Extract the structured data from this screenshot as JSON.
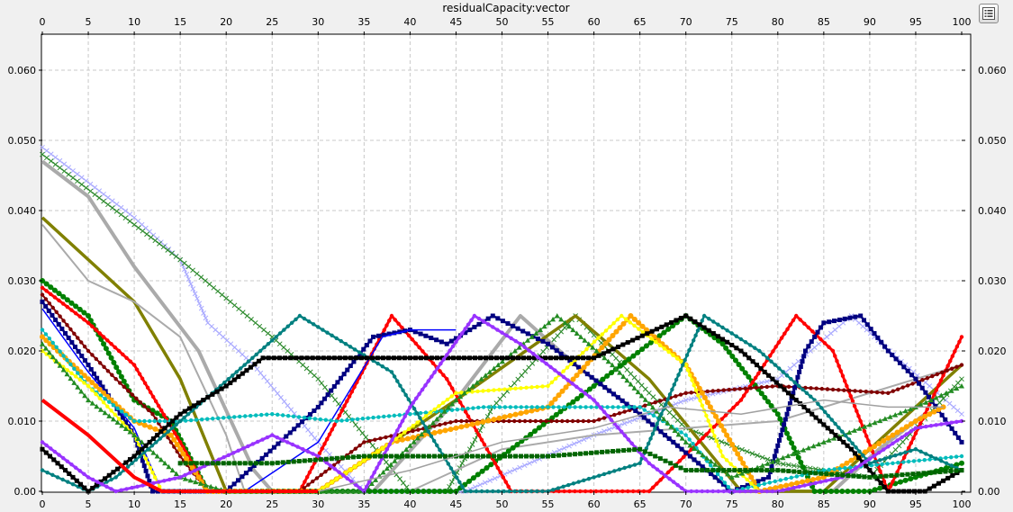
{
  "chart_data": {
    "type": "line",
    "title": "residualCapacity:vector",
    "xlim": [
      0,
      100
    ],
    "ylim": [
      0,
      0.065
    ],
    "x_ticks": [
      0,
      5,
      10,
      15,
      20,
      25,
      30,
      35,
      40,
      45,
      50,
      55,
      60,
      65,
      70,
      75,
      80,
      85,
      90,
      95,
      100
    ],
    "y_ticks": [
      0.0,
      0.01,
      0.02,
      0.03,
      0.04,
      0.05,
      0.06
    ],
    "y_tick_labels": [
      "0.00",
      "0.010",
      "0.020",
      "0.030",
      "0.040",
      "0.050",
      "0.060"
    ],
    "grid": true,
    "legend": "hidden (toggle button top-right)",
    "series": [
      {
        "color": "#aaaaff",
        "marker": "x",
        "width": 1.2,
        "points": [
          [
            0,
            0.049
          ],
          [
            10,
            0.039
          ],
          [
            15,
            0.033
          ],
          [
            18,
            0.024
          ],
          [
            23,
            0.018
          ],
          [
            30,
            0.007
          ],
          [
            35,
            0.0
          ],
          [
            46,
            0.0
          ],
          [
            53,
            0.004
          ],
          [
            60,
            0.008
          ],
          [
            70,
            0.013
          ],
          [
            80,
            0.016
          ],
          [
            88,
            0.025
          ],
          [
            93,
            0.019
          ],
          [
            100,
            0.011
          ]
        ]
      },
      {
        "color": "#2e8b2e",
        "marker": "x",
        "width": 1.2,
        "points": [
          [
            0,
            0.048
          ],
          [
            10,
            0.038
          ],
          [
            15,
            0.033
          ],
          [
            25,
            0.022
          ],
          [
            30,
            0.016
          ],
          [
            40,
            0.0
          ],
          [
            44,
            0.0
          ],
          [
            49,
            0.012
          ],
          [
            58,
            0.025
          ],
          [
            66,
            0.014
          ],
          [
            70,
            0.009
          ],
          [
            80,
            0.004
          ],
          [
            90,
            0.002
          ],
          [
            100,
            0.016
          ]
        ]
      },
      {
        "color": "#aaaaaa",
        "marker": "none",
        "width": 4,
        "points": [
          [
            0,
            0.047
          ],
          [
            5,
            0.042
          ],
          [
            10,
            0.032
          ],
          [
            17,
            0.02
          ],
          [
            23,
            0.003
          ],
          [
            25,
            0.0
          ],
          [
            36,
            0.0
          ],
          [
            45,
            0.013
          ],
          [
            52,
            0.025
          ],
          [
            58,
            0.018
          ],
          [
            65,
            0.011
          ],
          [
            75,
            0.0
          ],
          [
            86,
            0.0
          ],
          [
            91,
            0.006
          ],
          [
            96,
            0.011
          ]
        ]
      },
      {
        "color": "#808000",
        "marker": "none",
        "width": 3.5,
        "points": [
          [
            0,
            0.039
          ],
          [
            10,
            0.027
          ],
          [
            15,
            0.016
          ],
          [
            20,
            0.0
          ],
          [
            30,
            0.0
          ],
          [
            45,
            0.013
          ],
          [
            58,
            0.025
          ],
          [
            66,
            0.016
          ],
          [
            76,
            0.0
          ],
          [
            85,
            0.0
          ],
          [
            100,
            0.018
          ]
        ]
      },
      {
        "color": "#aaaaaa",
        "marker": "none",
        "width": 2,
        "points": [
          [
            0,
            0.038
          ],
          [
            5,
            0.03
          ],
          [
            10,
            0.027
          ],
          [
            15,
            0.022
          ],
          [
            20,
            0.008
          ],
          [
            22,
            0.0
          ],
          [
            40,
            0.0
          ],
          [
            50,
            0.006
          ],
          [
            60,
            0.008
          ],
          [
            80,
            0.01
          ],
          [
            100,
            0.018
          ]
        ]
      },
      {
        "color": "#008000",
        "marker": "circle",
        "width": 3,
        "points": [
          [
            0,
            0.03
          ],
          [
            5,
            0.025
          ],
          [
            10,
            0.013
          ],
          [
            14,
            0.01
          ],
          [
            18,
            0.0
          ],
          [
            35,
            0.0
          ],
          [
            45,
            0.0
          ],
          [
            55,
            0.01
          ],
          [
            60,
            0.015
          ],
          [
            70,
            0.025
          ],
          [
            74,
            0.021
          ],
          [
            80,
            0.011
          ],
          [
            84,
            0.0
          ],
          [
            90,
            0.0
          ],
          [
            100,
            0.004
          ]
        ]
      },
      {
        "color": "#ff0000",
        "marker": "dot",
        "width": 3,
        "points": [
          [
            0,
            0.029
          ],
          [
            5,
            0.024
          ],
          [
            10,
            0.018
          ],
          [
            15,
            0.007
          ],
          [
            18,
            0.0
          ],
          [
            28,
            0.0
          ],
          [
            38,
            0.025
          ],
          [
            44,
            0.016
          ],
          [
            51,
            0.0
          ],
          [
            66,
            0.0
          ],
          [
            76,
            0.013
          ],
          [
            82,
            0.025
          ],
          [
            86,
            0.02
          ],
          [
            92,
            0.0
          ],
          [
            100,
            0.022
          ]
        ]
      },
      {
        "color": "#800000",
        "marker": "dot",
        "width": 2,
        "points": [
          [
            0,
            0.028
          ],
          [
            5,
            0.02
          ],
          [
            8,
            0.016
          ],
          [
            12,
            0.011
          ],
          [
            15,
            0.005
          ],
          [
            18,
            0.0
          ],
          [
            28,
            0.0
          ],
          [
            35,
            0.007
          ],
          [
            45,
            0.01
          ],
          [
            60,
            0.01
          ],
          [
            70,
            0.014
          ],
          [
            80,
            0.015
          ],
          [
            92,
            0.014
          ],
          [
            100,
            0.018
          ]
        ]
      },
      {
        "color": "#000080",
        "marker": "square",
        "width": 2.5,
        "points": [
          [
            0,
            0.027
          ],
          [
            5,
            0.018
          ],
          [
            10,
            0.008
          ],
          [
            12,
            0.0
          ],
          [
            20,
            0.0
          ],
          [
            30,
            0.012
          ],
          [
            36,
            0.022
          ],
          [
            40,
            0.023
          ],
          [
            44,
            0.021
          ],
          [
            49,
            0.025
          ],
          [
            55,
            0.021
          ],
          [
            65,
            0.011
          ],
          [
            75,
            0.0
          ],
          [
            79,
            0.002
          ],
          [
            83,
            0.02
          ],
          [
            85,
            0.024
          ],
          [
            89,
            0.025
          ],
          [
            92,
            0.02
          ],
          [
            95,
            0.016
          ],
          [
            100,
            0.007
          ]
        ]
      },
      {
        "color": "#0000ff",
        "marker": "none",
        "width": 1.5,
        "points": [
          [
            0,
            0.026
          ],
          [
            5,
            0.017
          ],
          [
            10,
            0.009
          ],
          [
            13,
            0.0
          ],
          [
            22,
            0.0
          ],
          [
            30,
            0.007
          ],
          [
            37,
            0.022
          ],
          [
            40,
            0.023
          ],
          [
            45,
            0.023
          ]
        ]
      },
      {
        "color": "#ffa500",
        "marker": "circle",
        "width": 3,
        "points": [
          [
            0,
            0.022
          ],
          [
            5,
            0.016
          ],
          [
            10,
            0.01
          ],
          [
            14,
            0.008
          ],
          [
            18,
            0.0
          ],
          [
            30,
            0.0
          ],
          [
            38,
            0.007
          ],
          [
            45,
            0.009
          ],
          [
            55,
            0.012
          ],
          [
            64,
            0.025
          ],
          [
            70,
            0.018
          ],
          [
            78,
            0.0
          ],
          [
            85,
            0.002
          ],
          [
            95,
            0.01
          ],
          [
            98,
            0.012
          ]
        ]
      },
      {
        "color": "#00bcbc",
        "marker": "dot",
        "width": 1.2,
        "points": [
          [
            0,
            0.023
          ],
          [
            5,
            0.015
          ],
          [
            10,
            0.01
          ],
          [
            15,
            0.01
          ],
          [
            25,
            0.011
          ],
          [
            32,
            0.01
          ],
          [
            40,
            0.011
          ],
          [
            48,
            0.012
          ],
          [
            55,
            0.012
          ],
          [
            65,
            0.012
          ],
          [
            70,
            0.008
          ],
          [
            75,
            0.0
          ],
          [
            85,
            0.003
          ],
          [
            100,
            0.005
          ]
        ]
      },
      {
        "color": "#ffff00",
        "marker": "dot",
        "width": 2,
        "points": [
          [
            0,
            0.02
          ],
          [
            5,
            0.015
          ],
          [
            10,
            0.008
          ],
          [
            13,
            0.0
          ],
          [
            30,
            0.0
          ],
          [
            38,
            0.007
          ],
          [
            45,
            0.014
          ],
          [
            55,
            0.015
          ],
          [
            63,
            0.025
          ],
          [
            70,
            0.018
          ],
          [
            74,
            0.005
          ],
          [
            78,
            0.0
          ]
        ]
      },
      {
        "color": "#228b22",
        "marker": "triangle",
        "width": 1.2,
        "points": [
          [
            0,
            0.021
          ],
          [
            5,
            0.013
          ],
          [
            10,
            0.008
          ],
          [
            15,
            0.002
          ],
          [
            20,
            0.0
          ],
          [
            35,
            0.0
          ],
          [
            45,
            0.013
          ],
          [
            56,
            0.025
          ],
          [
            62,
            0.018
          ],
          [
            70,
            0.007
          ],
          [
            75,
            0.002
          ],
          [
            85,
            0.007
          ],
          [
            95,
            0.012
          ],
          [
            100,
            0.015
          ]
        ]
      },
      {
        "color": "#008080",
        "marker": "dot",
        "width": 2.5,
        "points": [
          [
            0,
            0.003
          ],
          [
            5,
            0.0
          ],
          [
            8,
            0.002
          ],
          [
            15,
            0.01
          ],
          [
            22,
            0.018
          ],
          [
            28,
            0.025
          ],
          [
            33,
            0.021
          ],
          [
            38,
            0.017
          ],
          [
            46,
            0.0
          ],
          [
            55,
            0.0
          ],
          [
            65,
            0.004
          ],
          [
            72,
            0.025
          ],
          [
            78,
            0.02
          ],
          [
            84,
            0.013
          ],
          [
            90,
            0.004
          ],
          [
            95,
            0.006
          ],
          [
            100,
            0.003
          ]
        ]
      },
      {
        "color": "#000000",
        "marker": "square",
        "width": 3,
        "points": [
          [
            0,
            0.006
          ],
          [
            5,
            0.0
          ],
          [
            10,
            0.005
          ],
          [
            15,
            0.011
          ],
          [
            20,
            0.015
          ],
          [
            24,
            0.019
          ],
          [
            30,
            0.019
          ],
          [
            40,
            0.019
          ],
          [
            50,
            0.019
          ],
          [
            60,
            0.019
          ],
          [
            70,
            0.025
          ],
          [
            76,
            0.02
          ],
          [
            82,
            0.013
          ],
          [
            88,
            0.006
          ],
          [
            92,
            0.0
          ],
          [
            96,
            0.0
          ],
          [
            100,
            0.003
          ]
        ]
      },
      {
        "color": "#9933ff",
        "marker": "dot",
        "width": 3,
        "points": [
          [
            0,
            0.007
          ],
          [
            5,
            0.002
          ],
          [
            8,
            0.0
          ],
          [
            15,
            0.002
          ],
          [
            25,
            0.008
          ],
          [
            30,
            0.005
          ],
          [
            35,
            0.0
          ],
          [
            40,
            0.012
          ],
          [
            47,
            0.025
          ],
          [
            52,
            0.021
          ],
          [
            60,
            0.013
          ],
          [
            66,
            0.004
          ],
          [
            70,
            0.0
          ],
          [
            80,
            0.0
          ],
          [
            87,
            0.002
          ],
          [
            95,
            0.009
          ],
          [
            100,
            0.01
          ]
        ]
      },
      {
        "color": "#ff0000",
        "marker": "none",
        "width": 4,
        "points": [
          [
            0,
            0.013
          ],
          [
            5,
            0.008
          ],
          [
            10,
            0.002
          ],
          [
            13,
            0.0
          ],
          [
            20,
            0.0
          ],
          [
            30,
            0.0
          ]
        ]
      },
      {
        "color": "#006400",
        "marker": "square",
        "width": 1.2,
        "points": [
          [
            15,
            0.004
          ],
          [
            25,
            0.004
          ],
          [
            35,
            0.005
          ],
          [
            45,
            0.005
          ],
          [
            55,
            0.005
          ],
          [
            65,
            0.006
          ],
          [
            70,
            0.003
          ],
          [
            80,
            0.003
          ],
          [
            90,
            0.002
          ],
          [
            100,
            0.003
          ]
        ]
      },
      {
        "color": "#a0a0a0",
        "marker": "none",
        "width": 1.5,
        "points": [
          [
            30,
            0.0
          ],
          [
            40,
            0.003
          ],
          [
            50,
            0.007
          ],
          [
            60,
            0.009
          ],
          [
            68,
            0.012
          ],
          [
            76,
            0.011
          ],
          [
            85,
            0.013
          ],
          [
            92,
            0.012
          ],
          [
            98,
            0.012
          ]
        ]
      }
    ]
  },
  "ui": {
    "legend_button_icon": "legend-list-icon"
  }
}
